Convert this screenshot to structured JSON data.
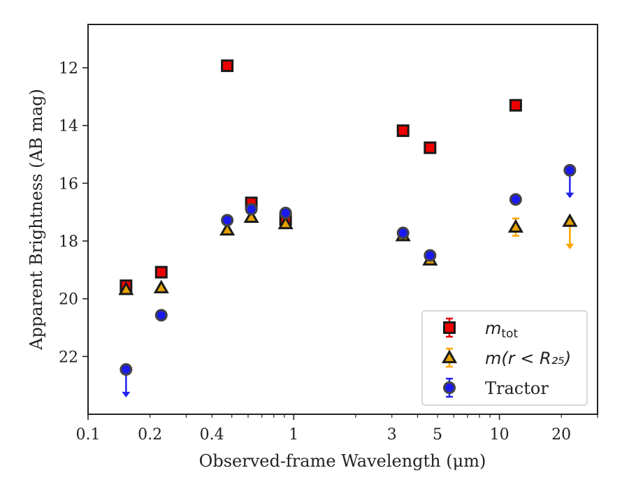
{
  "chart_data": {
    "type": "scatter",
    "title": "",
    "xlabel": "Observed-frame Wavelength (μm)",
    "ylabel": "Apparent Brightness (AB mag)",
    "x_scale": "log",
    "xlim": [
      0.1,
      30
    ],
    "ylim": [
      24,
      10.5
    ],
    "y_inverted": true,
    "grid": false,
    "legend_position": "lower-right",
    "x_ticks": [
      {
        "value": 0.1,
        "label": "0.1"
      },
      {
        "value": 0.2,
        "label": "0.2"
      },
      {
        "value": 0.4,
        "label": "0.4"
      },
      {
        "value": 1,
        "label": "1"
      },
      {
        "value": 3,
        "label": "3"
      },
      {
        "value": 5,
        "label": "5"
      },
      {
        "value": 10,
        "label": "10"
      },
      {
        "value": 20,
        "label": "20"
      }
    ],
    "y_ticks": [
      {
        "value": 12,
        "label": "12"
      },
      {
        "value": 14,
        "label": "14"
      },
      {
        "value": 16,
        "label": "16"
      },
      {
        "value": 18,
        "label": "18"
      },
      {
        "value": 20,
        "label": "20"
      },
      {
        "value": 22,
        "label": "22"
      }
    ],
    "series": [
      {
        "legend": {
          "italic": "m",
          "subscript": "tot",
          "tail": ""
        },
        "marker": "square",
        "fill_color": "#ee0000",
        "edge_color": "#1a1a1a",
        "error_color": "#dd0000",
        "points": [
          {
            "x": 0.153,
            "y": 19.55
          },
          {
            "x": 0.227,
            "y": 19.08
          },
          {
            "x": 0.475,
            "y": 11.93
          },
          {
            "x": 0.622,
            "y": 16.68
          },
          {
            "x": 0.913,
            "y": 17.25
          },
          {
            "x": 3.4,
            "y": 14.18
          },
          {
            "x": 4.6,
            "y": 14.77
          },
          {
            "x": 12.0,
            "y": 13.3
          }
        ]
      },
      {
        "legend": {
          "italic": "m",
          "subscript": "",
          "tail": "(r < R₂₅)"
        },
        "marker": "triangle",
        "fill_color": "#e6a100",
        "edge_color": "#1a1a1a",
        "error_color": "#ffa500",
        "points": [
          {
            "x": 0.153,
            "y": 19.68
          },
          {
            "x": 0.227,
            "y": 19.62
          },
          {
            "x": 0.475,
            "y": 17.62
          },
          {
            "x": 0.622,
            "y": 17.18
          },
          {
            "x": 0.913,
            "y": 17.4
          },
          {
            "x": 3.4,
            "y": 17.82
          },
          {
            "x": 4.6,
            "y": 18.66
          },
          {
            "x": 12.0,
            "y": 17.52,
            "err": 0.3
          },
          {
            "x": 22.0,
            "y": 17.32,
            "upper_limit": true
          }
        ]
      },
      {
        "legend": {
          "italic": "",
          "subscript": "",
          "tail": "Tractor"
        },
        "marker": "circle",
        "fill_color": "#1a1aee",
        "edge_color": "#444444",
        "error_color": "#2222ee",
        "points": [
          {
            "x": 0.153,
            "y": 22.45,
            "upper_limit": true
          },
          {
            "x": 0.227,
            "y": 20.57
          },
          {
            "x": 0.475,
            "y": 17.28
          },
          {
            "x": 0.622,
            "y": 16.9
          },
          {
            "x": 0.913,
            "y": 17.03
          },
          {
            "x": 3.4,
            "y": 17.72
          },
          {
            "x": 4.6,
            "y": 18.5
          },
          {
            "x": 12.0,
            "y": 16.56
          },
          {
            "x": 22.0,
            "y": 15.55,
            "upper_limit": true
          }
        ]
      }
    ]
  }
}
